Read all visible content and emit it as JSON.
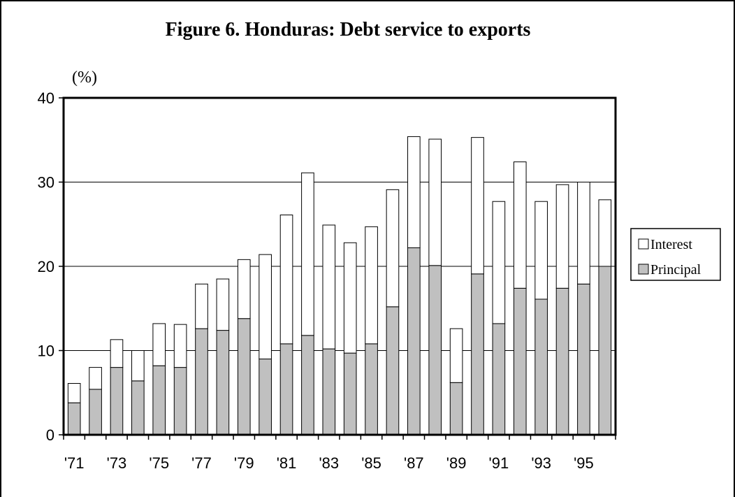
{
  "chart_data": {
    "type": "bar",
    "stacked": true,
    "title": "Figure 6. Honduras: Debt service to exports",
    "ylabel": "(%)",
    "xlabel": "",
    "ylim": [
      0,
      40
    ],
    "yticks": [
      "0",
      "10",
      "20",
      "30",
      "40"
    ],
    "grid": true,
    "legend_position": "right",
    "categories": [
      "'71",
      "'72",
      "'73",
      "'74",
      "'75",
      "'76",
      "'77",
      "'78",
      "'79",
      "'80",
      "'81",
      "'82",
      "'83",
      "'84",
      "'85",
      "'86",
      "'87",
      "'88",
      "'89",
      "'90",
      "'91",
      "'92",
      "'93",
      "'94",
      "'95",
      "'96"
    ],
    "x_tick_labels": [
      "'71",
      "'73",
      "'75",
      "'77",
      "'79",
      "'81",
      "'83",
      "'85",
      "'87",
      "'89",
      "'91",
      "'93",
      "'95"
    ],
    "series": [
      {
        "name": "Principal",
        "color": "#c0c0c0",
        "values": [
          3.8,
          5.4,
          8.0,
          6.4,
          8.2,
          8.0,
          12.6,
          12.4,
          13.8,
          9.0,
          10.8,
          11.8,
          10.2,
          9.7,
          10.8,
          15.2,
          22.2,
          20.1,
          6.2,
          19.1,
          13.2,
          17.4,
          16.1,
          17.4,
          17.9,
          20.0
        ]
      },
      {
        "name": "Interest",
        "color": "#ffffff",
        "values": [
          2.3,
          2.6,
          3.3,
          3.6,
          5.0,
          5.1,
          5.3,
          6.1,
          7.0,
          12.4,
          15.3,
          19.3,
          14.7,
          13.1,
          13.9,
          13.9,
          13.2,
          15.0,
          6.4,
          16.2,
          14.5,
          15.0,
          11.6,
          12.3,
          12.1,
          7.9
        ]
      }
    ],
    "legend": [
      {
        "name": "Interest",
        "color": "#ffffff"
      },
      {
        "name": "Principal",
        "color": "#c0c0c0"
      }
    ]
  }
}
